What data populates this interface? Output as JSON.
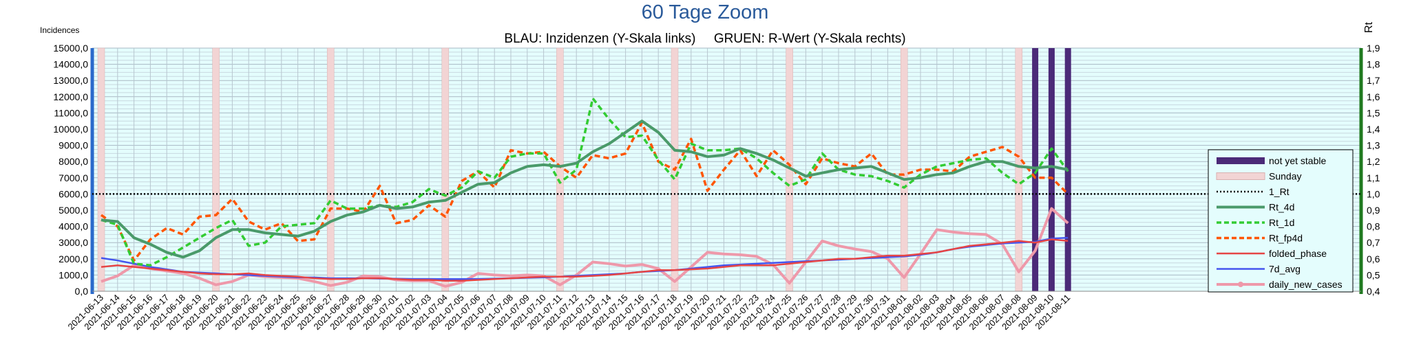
{
  "chart_data": {
    "type": "line",
    "title": "60 Tage Zoom",
    "subtitle": "BLAU: Inzidenzen (Y-Skala links)     GRUEN: R-Wert (Y-Skala rechts)",
    "ylabel_left": "Incidences",
    "ylabel_right": "Rt",
    "ylim_left": [
      0,
      15000
    ],
    "ylim_right": [
      0.4,
      1.9
    ],
    "yticks_left": [
      "0,0",
      "1000,0",
      "2000,0",
      "3000,0",
      "4000,0",
      "5000,0",
      "6000,0",
      "7000,0",
      "8000,0",
      "9000,0",
      "10000,0",
      "11000,0",
      "12000,0",
      "13000,0",
      "14000,0",
      "15000,0"
    ],
    "yticks_right": [
      "0,4",
      "0,5",
      "0,6",
      "0,7",
      "0,8",
      "0,9",
      "1,0",
      "1,1",
      "1,2",
      "1,3",
      "1,4",
      "1,5",
      "1,6",
      "1,7",
      "1,8",
      "1,9"
    ],
    "x": [
      "2021-06-13",
      "2021-06-14",
      "2021-06-15",
      "2021-06-16",
      "2021-06-17",
      "2021-06-18",
      "2021-06-19",
      "2021-06-20",
      "2021-06-21",
      "2021-06-22",
      "2021-06-23",
      "2021-06-24",
      "2021-06-25",
      "2021-06-26",
      "2021-06-27",
      "2021-06-28",
      "2021-06-29",
      "2021-06-30",
      "2021-07-01",
      "2021-07-02",
      "2021-07-03",
      "2021-07-04",
      "2021-07-05",
      "2021-07-06",
      "2021-07-07",
      "2021-07-08",
      "2021-07-09",
      "2021-07-10",
      "2021-07-11",
      "2021-07-12",
      "2021-07-13",
      "2021-07-14",
      "2021-07-15",
      "2021-07-16",
      "2021-07-17",
      "2021-07-18",
      "2021-07-19",
      "2021-07-20",
      "2021-07-21",
      "2021-07-22",
      "2021-07-23",
      "2021-07-24",
      "2021-07-25",
      "2021-07-26",
      "2021-07-27",
      "2021-07-28",
      "2021-07-29",
      "2021-07-30",
      "2021-07-31",
      "2021-08-01",
      "2021-08-02",
      "2021-08-03",
      "2021-08-04",
      "2021-08-05",
      "2021-08-06",
      "2021-08-07",
      "2021-08-08",
      "2021-08-09",
      "2021-08-10",
      "2021-08-11"
    ],
    "sundays": [
      "2021-06-13",
      "2021-06-20",
      "2021-06-27",
      "2021-07-04",
      "2021-07-11",
      "2021-07-18",
      "2021-07-25",
      "2021-08-01",
      "2021-08-08"
    ],
    "not_yet_stable": [
      "2021-08-09",
      "2021-08-10",
      "2021-08-11"
    ],
    "series": [
      {
        "name": "not yet stable",
        "axis": "left",
        "color": "#4b2a78",
        "style": "bar"
      },
      {
        "name": "Sunday",
        "axis": "left",
        "color": "#f2d4d4",
        "style": "bar"
      },
      {
        "name": "1_Rt",
        "axis": "right",
        "color": "#000000",
        "style": "dotted",
        "values": [
          1,
          1,
          1,
          1,
          1,
          1,
          1,
          1,
          1,
          1,
          1,
          1,
          1,
          1,
          1,
          1,
          1,
          1,
          1,
          1,
          1,
          1,
          1,
          1,
          1,
          1,
          1,
          1,
          1,
          1,
          1,
          1,
          1,
          1,
          1,
          1,
          1,
          1,
          1,
          1,
          1,
          1,
          1,
          1,
          1,
          1,
          1,
          1,
          1,
          1,
          1,
          1,
          1,
          1,
          1,
          1,
          1,
          1,
          1,
          1
        ]
      },
      {
        "name": "Rt_4d",
        "axis": "right",
        "color": "#4a9a6a",
        "style": "thick",
        "values": [
          0.84,
          0.83,
          0.73,
          0.69,
          0.64,
          0.61,
          0.65,
          0.73,
          0.78,
          0.78,
          0.76,
          0.75,
          0.74,
          0.77,
          0.83,
          0.87,
          0.89,
          0.93,
          0.91,
          0.92,
          0.95,
          0.96,
          1.01,
          1.06,
          1.07,
          1.13,
          1.17,
          1.18,
          1.17,
          1.19,
          1.26,
          1.31,
          1.38,
          1.45,
          1.38,
          1.27,
          1.26,
          1.23,
          1.24,
          1.28,
          1.25,
          1.21,
          1.16,
          1.11,
          1.13,
          1.15,
          1.16,
          1.17,
          1.13,
          1.09,
          1.1,
          1.12,
          1.13,
          1.17,
          1.2,
          1.2,
          1.17,
          1.16,
          1.17,
          1.15
        ]
      },
      {
        "name": "Rt_1d",
        "axis": "right",
        "color": "#33cc33",
        "style": "dashed",
        "values": [
          0.84,
          0.81,
          0.57,
          0.56,
          0.61,
          0.67,
          0.73,
          0.79,
          0.84,
          0.68,
          0.7,
          0.8,
          0.81,
          0.82,
          0.96,
          0.91,
          0.91,
          0.93,
          0.92,
          0.95,
          1.03,
          0.99,
          1.04,
          1.14,
          1.1,
          1.23,
          1.25,
          1.25,
          1.07,
          1.15,
          1.59,
          1.46,
          1.35,
          1.36,
          1.21,
          1.09,
          1.31,
          1.27,
          1.27,
          1.28,
          1.22,
          1.13,
          1.05,
          1.09,
          1.25,
          1.15,
          1.12,
          1.11,
          1.08,
          1.04,
          1.12,
          1.17,
          1.19,
          1.21,
          1.22,
          1.13,
          1.06,
          1.13,
          1.28,
          1.14
        ]
      },
      {
        "name": "Rt_fp4d",
        "axis": "right",
        "color": "#ff5500",
        "style": "dashed",
        "values": [
          0.87,
          0.8,
          0.59,
          0.72,
          0.79,
          0.75,
          0.86,
          0.87,
          0.97,
          0.83,
          0.78,
          0.82,
          0.71,
          0.72,
          0.91,
          0.91,
          0.89,
          1.05,
          0.82,
          0.84,
          0.93,
          0.86,
          1.08,
          1.14,
          1.04,
          1.27,
          1.25,
          1.26,
          1.17,
          1.1,
          1.24,
          1.22,
          1.25,
          1.44,
          1.2,
          1.15,
          1.34,
          1.02,
          1.15,
          1.27,
          1.11,
          1.27,
          1.18,
          1.06,
          1.22,
          1.19,
          1.17,
          1.25,
          1.12,
          1.12,
          1.15,
          1.15,
          1.14,
          1.23,
          1.26,
          1.29,
          1.23,
          1.1,
          1.1,
          1.0
        ]
      },
      {
        "name": "folded_phase",
        "axis": "left",
        "color": "#e64545",
        "style": "solid",
        "values": [
          1500,
          1600,
          1500,
          1400,
          1300,
          1200,
          1100,
          1050,
          1050,
          1100,
          1000,
          950,
          900,
          800,
          750,
          750,
          800,
          800,
          750,
          700,
          700,
          650,
          650,
          700,
          750,
          800,
          850,
          900,
          900,
          900,
          950,
          1000,
          1100,
          1200,
          1300,
          1300,
          1350,
          1400,
          1500,
          1600,
          1600,
          1600,
          1700,
          1800,
          1900,
          2000,
          2000,
          2100,
          2200,
          2200,
          2300,
          2400,
          2600,
          2800,
          2900,
          3000,
          3100,
          3000,
          3200,
          3100
        ]
      },
      {
        "name": "7d_avg",
        "axis": "left",
        "color": "#4455ee",
        "style": "solid",
        "values": [
          2050,
          1900,
          1700,
          1500,
          1350,
          1200,
          1150,
          1100,
          1050,
          1000,
          950,
          900,
          850,
          850,
          800,
          800,
          800,
          780,
          770,
          760,
          760,
          750,
          750,
          760,
          780,
          800,
          830,
          860,
          900,
          950,
          1000,
          1050,
          1100,
          1200,
          1250,
          1300,
          1400,
          1500,
          1600,
          1650,
          1700,
          1750,
          1800,
          1850,
          1900,
          1950,
          2000,
          2050,
          2100,
          2150,
          2250,
          2400,
          2600,
          2750,
          2850,
          2950,
          3000,
          3050,
          3250,
          3300
        ]
      },
      {
        "name": "daily_new_cases",
        "axis": "left",
        "color": "#ee99aa",
        "style": "marker",
        "values": [
          600,
          950,
          1600,
          1400,
          1250,
          1100,
          800,
          400,
          600,
          1000,
          900,
          850,
          800,
          600,
          350,
          550,
          950,
          900,
          700,
          650,
          650,
          300,
          550,
          1100,
          1000,
          950,
          1000,
          950,
          400,
          1000,
          1800,
          1700,
          1550,
          1650,
          1400,
          600,
          1500,
          2400,
          2300,
          2250,
          2150,
          1650,
          500,
          1800,
          3100,
          2800,
          2600,
          2450,
          2000,
          850,
          2300,
          3800,
          3650,
          3550,
          3500,
          2900,
          1200,
          2500,
          5100,
          4200
        ]
      }
    ]
  }
}
